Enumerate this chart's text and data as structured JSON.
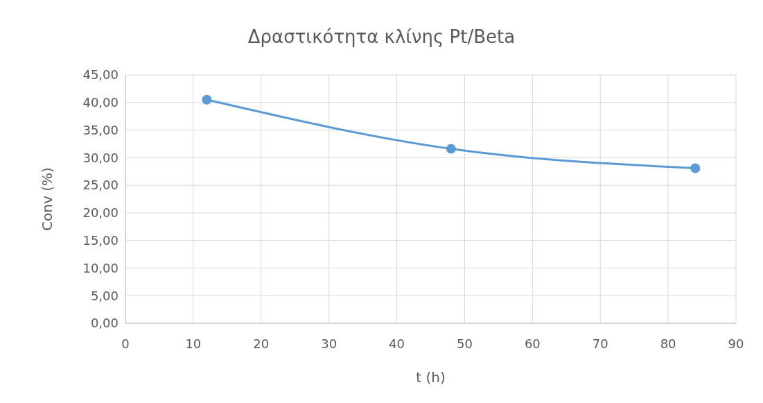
{
  "chart_data": {
    "type": "line",
    "title": "Δραστικότητα κλίνης Pt/Beta",
    "xlabel": "t (h)",
    "ylabel": "Conv (%)",
    "x": [
      12,
      48,
      84
    ],
    "series": [
      {
        "color": "#5b9bd5",
        "values": [
          40.5,
          31.6,
          28.1
        ]
      }
    ],
    "xlim": [
      0,
      90
    ],
    "xticks": [
      0,
      10,
      20,
      30,
      40,
      50,
      60,
      70,
      80,
      90
    ],
    "ylim": [
      0,
      45
    ],
    "yticks": [
      {
        "value": 0,
        "label": "0,00"
      },
      {
        "value": 5,
        "label": "5,00"
      },
      {
        "value": 10,
        "label": "10,00"
      },
      {
        "value": 15,
        "label": "15,00"
      },
      {
        "value": 20,
        "label": "20,00"
      },
      {
        "value": 25,
        "label": "25,00"
      },
      {
        "value": 30,
        "label": "30,00"
      },
      {
        "value": 35,
        "label": "35,00"
      },
      {
        "value": 40,
        "label": "40,00"
      },
      {
        "value": 45,
        "label": "45,00"
      }
    ],
    "grid": true,
    "marker": "circle",
    "line_style": "solid"
  }
}
